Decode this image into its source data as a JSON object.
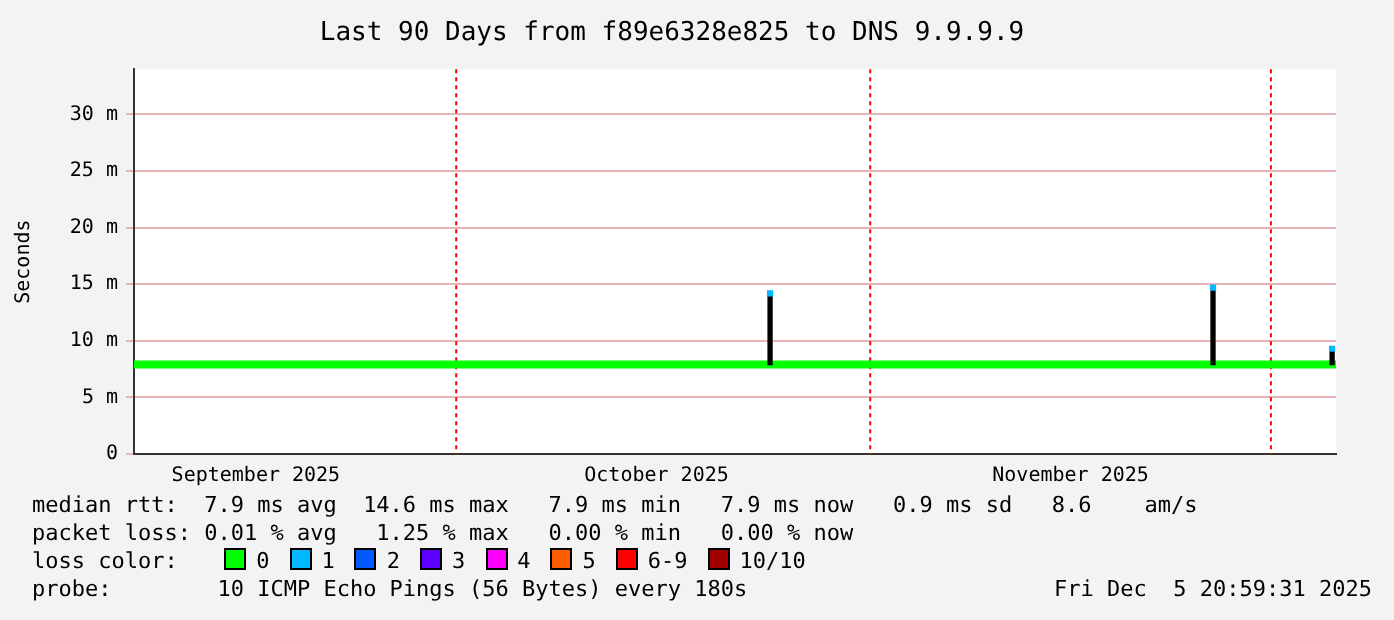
{
  "chart_data": {
    "type": "line",
    "title": "Last 90 Days from f89e6328e825 to DNS 9.9.9.9",
    "ylabel": "Seconds",
    "xlim": [
      "2025-09-06T21:00",
      "2025-12-05T21:00"
    ],
    "xticks": [
      {
        "value": "2025-09-16",
        "label": "September 2025"
      },
      {
        "value": "2025-10-16",
        "label": "October 2025"
      },
      {
        "value": "2025-11-16",
        "label": "November 2025"
      }
    ],
    "ref_lines": [
      {
        "axis": "x",
        "value": "2025-10-01",
        "color": "#ff0000",
        "line_style": "dotted"
      },
      {
        "axis": "x",
        "value": "2025-11-01",
        "color": "#ff0000",
        "line_style": "dotted"
      },
      {
        "axis": "x",
        "value": "2025-12-01",
        "color": "#ff0000",
        "line_style": "dotted"
      }
    ],
    "ylim": [
      0,
      34
    ],
    "yticks": [
      0,
      {
        "value": 5,
        "label": "5 m"
      },
      {
        "value": 10,
        "label": "10 m"
      },
      {
        "value": 15,
        "label": "15 m"
      },
      {
        "value": 20,
        "label": "20 m"
      },
      {
        "value": 25,
        "label": "25 m"
      },
      {
        "value": 30,
        "label": "30 m"
      }
    ],
    "grid": "y",
    "legend": "bottom",
    "legend_title": "loss color:",
    "series": [
      {
        "type": "bar",
        "color": "#000000",
        "x": [
          "2025-10-24T12:00",
          "2025-11-26T16:00",
          "2025-12-05T14:00"
        ],
        "base": [
          7.9,
          7.9,
          7.9
        ],
        "values": [
          6.3,
          6.8,
          1.4
        ]
      },
      {
        "name": "0",
        "marker": "none",
        "color": "#00ff00",
        "x": [
          "2025-09-06T21:00",
          "2025-10-24T12:00",
          "2025-11-26T16:00",
          "2025-12-05T14:00",
          "2025-12-05T21:00"
        ],
        "values": [
          7.9,
          7.9,
          7.9,
          7.9,
          7.9
        ]
      },
      {
        "name": "1",
        "type": "scatter",
        "marker": "square",
        "color": "#00b8ff",
        "x": [
          "2025-10-24T12:00",
          "2025-11-26T16:00",
          "2025-12-05T14:00"
        ],
        "values": [
          14.2,
          14.7,
          9.3
        ]
      },
      {
        "name": "2",
        "type": "scatter",
        "color": "#0059ff"
      },
      {
        "name": "3",
        "type": "scatter",
        "color": "#5e00ff"
      },
      {
        "name": "4",
        "type": "scatter",
        "color": "#ff00ff"
      },
      {
        "name": "5",
        "type": "scatter",
        "color": "#ff5e00"
      },
      {
        "name": "6-9",
        "type": "scatter",
        "color": "#ff0000"
      },
      {
        "name": "10/10",
        "type": "scatter",
        "color": "#a10000"
      }
    ],
    "annotations": [
      "median rtt:  7.9 ms avg  14.6 ms max   7.9 ms min   7.9 ms now   0.9 ms sd   8.6    am/s",
      "packet loss: 0.01 % avg   1.25 % max   0.00 % min   0.00 % now",
      "probe:        10 ICMP Echo Pings (56 Bytes) every 180s",
      "Fri Dec  5 20:59:31 2025"
    ]
  }
}
